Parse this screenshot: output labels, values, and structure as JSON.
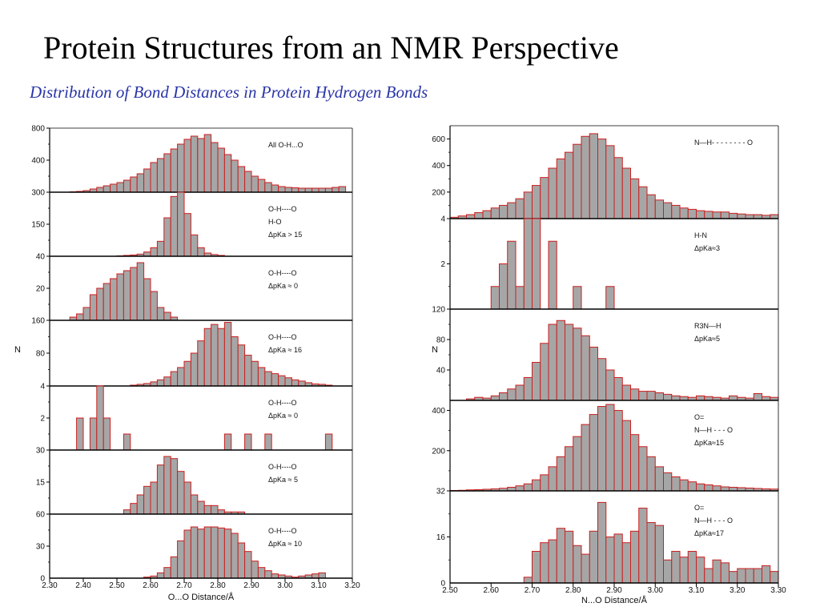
{
  "page": {
    "title": "Protein Structures from an NMR Perspective",
    "subtitle": "Distribution of Bond Distances in Protein Hydrogen Bonds"
  },
  "colors": {
    "bar_fill": "#a6a6a6",
    "bar_stroke": "#cc1f1f",
    "axis": "#000000",
    "subtitle": "#2a35a8"
  },
  "chart_data": [
    {
      "type": "bar",
      "xlabel": "O...O Distance/Å",
      "ylabel": "N",
      "x_ticks": [
        2.3,
        2.4,
        2.5,
        2.6,
        2.7,
        2.8,
        2.9,
        3.0,
        3.1,
        3.2
      ],
      "x_tick_labels": [
        "2.30",
        "2.40",
        "2.50",
        "2.60",
        "2.70",
        "2.80",
        "2.90",
        "3.00",
        "3.10",
        "3.20"
      ],
      "xlim": [
        2.3,
        3.2
      ],
      "bin_width": 0.02,
      "panels": [
        {
          "id": "all-oho",
          "ylim": [
            0,
            800
          ],
          "y_ticks": [
            400,
            800
          ],
          "y_tick_labels": [
            "400",
            "800"
          ],
          "annotation": [
            "All O-H...O"
          ],
          "bins_start": 2.36,
          "values": [
            5,
            10,
            20,
            40,
            60,
            80,
            100,
            120,
            150,
            190,
            230,
            290,
            370,
            420,
            480,
            540,
            600,
            660,
            700,
            670,
            720,
            620,
            550,
            470,
            400,
            320,
            260,
            200,
            160,
            120,
            90,
            70,
            60,
            55,
            50,
            50,
            50,
            50,
            50,
            60,
            70
          ]
        },
        {
          "id": "acid-acid-15",
          "ylim": [
            0,
            300
          ],
          "y_ticks": [
            150,
            300
          ],
          "y_tick_labels": [
            "150",
            "300"
          ],
          "annotation": [
            "O-H----O",
            "H-O",
            "ΔpKa > 15"
          ],
          "bins_start": 2.5,
          "values": [
            2,
            4,
            6,
            10,
            20,
            40,
            70,
            180,
            280,
            310,
            200,
            100,
            40,
            15,
            8,
            4
          ]
        },
        {
          "id": "acid-carboxylate-0",
          "ylim": [
            0,
            40
          ],
          "y_ticks": [
            20,
            40
          ],
          "y_tick_labels": [
            "20",
            "40"
          ],
          "annotation": [
            "O-H----O",
            "ΔpKa ≈ 0"
          ],
          "bins_start": 2.36,
          "values": [
            2,
            4,
            8,
            16,
            20,
            23,
            26,
            29,
            31,
            33,
            36,
            26,
            18,
            8,
            5,
            2
          ]
        },
        {
          "id": "water-water-16",
          "ylim": [
            0,
            160
          ],
          "y_ticks": [
            80,
            160
          ],
          "y_tick_labels": [
            "80",
            "160"
          ],
          "annotation": [
            "O-H----O",
            "ΔpKa ≈ 16"
          ],
          "bins_start": 2.54,
          "values": [
            2,
            4,
            6,
            10,
            15,
            22,
            35,
            45,
            60,
            80,
            110,
            140,
            150,
            140,
            155,
            120,
            100,
            75,
            60,
            45,
            35,
            30,
            25,
            20,
            15,
            12,
            8,
            5,
            4,
            2
          ]
        },
        {
          "id": "hydronium-water-0",
          "ylim": [
            0,
            4
          ],
          "y_ticks": [
            2,
            4
          ],
          "y_tick_labels": [
            "2",
            "4"
          ],
          "annotation": [
            "O-H----O",
            "ΔpKa ≈ 0"
          ],
          "bins_start": 2.38,
          "values": [
            2,
            0,
            2,
            4,
            2,
            0,
            0,
            1,
            0,
            0,
            0,
            0,
            0,
            0,
            0,
            0,
            0,
            0,
            0,
            0,
            0,
            0,
            1,
            0,
            0,
            1,
            0,
            0,
            1,
            0,
            0,
            0,
            0,
            0,
            0,
            0,
            0,
            1
          ]
        },
        {
          "id": "carboxyl-water-5",
          "ylim": [
            0,
            30
          ],
          "y_ticks": [
            15,
            30
          ],
          "y_tick_labels": [
            "15",
            "30"
          ],
          "annotation": [
            "O-H----O",
            "ΔpKa ≈ 5"
          ],
          "bins_start": 2.44,
          "values": [
            0,
            0,
            0,
            0,
            2,
            5,
            9,
            13,
            15,
            23,
            27,
            26,
            20,
            15,
            9,
            6,
            4,
            4,
            2,
            1,
            1,
            1
          ]
        },
        {
          "id": "water-carboxylate-10",
          "ylim": [
            0,
            60
          ],
          "y_ticks": [
            30,
            60
          ],
          "y_tick_labels": [
            "30",
            "60"
          ],
          "annotation": [
            "O-H----O",
            "ΔpKa ≈ 10"
          ],
          "bins_start": 2.58,
          "values": [
            1,
            2,
            5,
            10,
            20,
            35,
            45,
            48,
            46,
            48,
            48,
            47,
            46,
            42,
            33,
            25,
            16,
            10,
            7,
            4,
            3,
            2,
            1,
            2,
            3,
            4,
            5
          ]
        }
      ]
    },
    {
      "type": "bar",
      "xlabel": "N...O Distance/Å",
      "ylabel": "N",
      "x_ticks": [
        2.5,
        2.6,
        2.7,
        2.8,
        2.9,
        3.0,
        3.1,
        3.2,
        3.3
      ],
      "x_tick_labels": [
        "2.50",
        "2.60",
        "2.70",
        "2.80",
        "2.90",
        "3.00",
        "3.10",
        "3.20",
        "3.30"
      ],
      "xlim": [
        2.5,
        3.3
      ],
      "bin_width": 0.02,
      "panels": [
        {
          "id": "all-nho",
          "ylim": [
            0,
            700
          ],
          "y_ticks": [
            200,
            400,
            600
          ],
          "y_tick_labels": [
            "200",
            "400",
            "600"
          ],
          "annotation": [
            "N—H- - - - - - - - O"
          ],
          "bins_start": 2.5,
          "values": [
            10,
            20,
            30,
            45,
            60,
            80,
            100,
            120,
            150,
            200,
            250,
            310,
            380,
            450,
            500,
            560,
            620,
            640,
            600,
            550,
            460,
            380,
            300,
            240,
            180,
            140,
            120,
            100,
            80,
            70,
            60,
            55,
            50,
            50,
            40,
            35,
            30,
            30,
            25,
            30
          ]
        },
        {
          "id": "imidazolium-carboxylate-3",
          "ylim": [
            0,
            4
          ],
          "y_ticks": [
            2,
            4
          ],
          "y_tick_labels": [
            "2",
            "4"
          ],
          "annotation": [
            "H-N",
            "ΔpKa≈3"
          ],
          "bins_start": 2.6,
          "values": [
            1,
            2,
            3,
            1,
            4,
            4,
            0,
            3,
            0,
            0,
            1,
            0,
            0,
            0,
            1,
            0,
            0,
            0,
            0,
            0,
            0,
            0,
            0,
            0,
            0,
            0,
            0,
            0,
            0,
            0,
            0,
            0,
            0,
            0,
            0,
            0,
            0,
            0,
            0,
            0,
            0,
            0
          ]
        },
        {
          "id": "ammonium-carboxylate-5",
          "ylim": [
            0,
            120
          ],
          "y_ticks": [
            40,
            80,
            120
          ],
          "y_tick_labels": [
            "40",
            "80",
            "120"
          ],
          "annotation": [
            "R3N—H",
            "ΔpKa≈5"
          ],
          "bins_start": 2.5,
          "values": [
            0,
            0,
            2,
            4,
            3,
            6,
            10,
            15,
            20,
            30,
            50,
            75,
            100,
            105,
            100,
            95,
            85,
            70,
            55,
            40,
            30,
            20,
            15,
            12,
            12,
            10,
            8,
            6,
            5,
            4,
            6,
            5,
            4,
            3,
            6,
            4,
            3,
            9,
            5,
            4
          ]
        },
        {
          "id": "amide-amide-15",
          "ylim": [
            0,
            450
          ],
          "y_ticks": [
            200,
            400
          ],
          "y_tick_labels": [
            "200",
            "400"
          ],
          "annotation": [
            "O=",
            "N—H - - - O",
            "ΔpKa≈15"
          ],
          "bins_start": 2.5,
          "values": [
            2,
            3,
            5,
            6,
            8,
            10,
            13,
            18,
            25,
            35,
            55,
            80,
            120,
            170,
            220,
            270,
            330,
            380,
            420,
            430,
            400,
            350,
            280,
            220,
            170,
            120,
            90,
            70,
            55,
            45,
            35,
            30,
            25,
            20,
            18,
            16,
            14,
            12,
            10,
            9
          ]
        },
        {
          "id": "amide-water-17",
          "ylim": [
            0,
            32
          ],
          "y_ticks": [
            16,
            32
          ],
          "y_tick_labels": [
            "16",
            "32"
          ],
          "annotation": [
            "O=",
            "N—H - - - O",
            "ΔpKa≈17"
          ],
          "bins_start": 2.5,
          "values": [
            0,
            0,
            0,
            0,
            0,
            0,
            0,
            0,
            0,
            2,
            11,
            14,
            15,
            19,
            18,
            13,
            10,
            18,
            28,
            16,
            17,
            14,
            18,
            26,
            21,
            20,
            8,
            11,
            9,
            11,
            9,
            5,
            8,
            7,
            4,
            5,
            5,
            5,
            6,
            4
          ]
        }
      ]
    }
  ]
}
